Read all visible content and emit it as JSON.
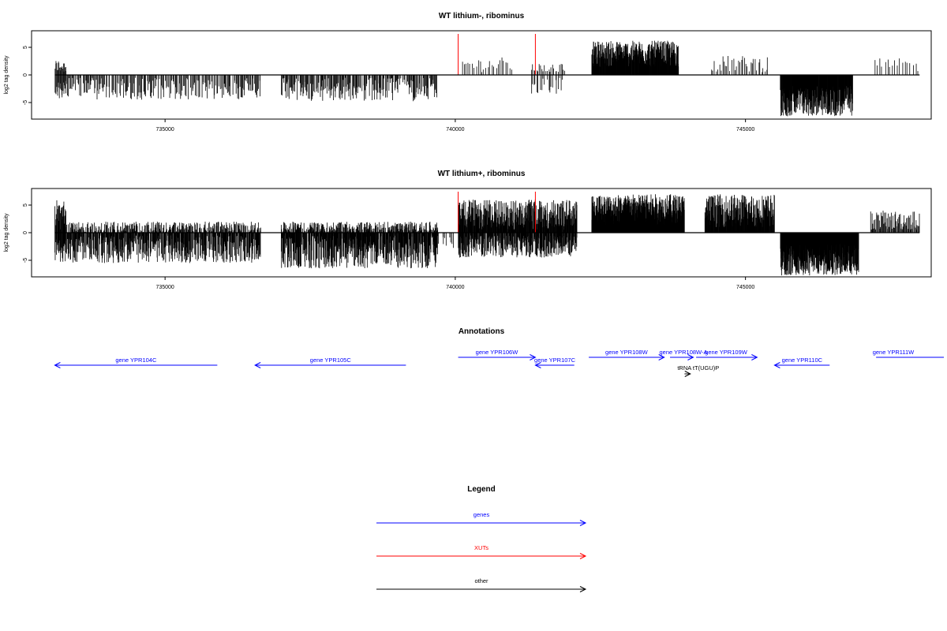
{
  "chart_data": [
    {
      "type": "bar",
      "title": "WT lithium-, ribominus",
      "ylabel": "log2 tag density",
      "xlim": [
        732700,
        748200
      ],
      "ylim": [
        -8,
        8
      ],
      "xticks": [
        735000,
        740000,
        745000
      ],
      "yticks": [
        -5,
        0,
        5
      ],
      "xut_markers": [
        740050,
        741380
      ],
      "grid": false,
      "segments": [
        {
          "start": 733100,
          "end": 733300,
          "density": 14,
          "pos": [
            0.4,
            2.8
          ],
          "neg": [
            -4.5,
            -1.0
          ]
        },
        {
          "start": 733300,
          "end": 736650,
          "density": 10,
          "pos": [
            0,
            0
          ],
          "neg": [
            -4.5,
            -0.5
          ]
        },
        {
          "start": 737000,
          "end": 739700,
          "density": 12,
          "pos": [
            0,
            0
          ],
          "neg": [
            -4.8,
            -0.5
          ]
        },
        {
          "start": 740100,
          "end": 741000,
          "density": 4,
          "pos": [
            0.5,
            3.2
          ],
          "neg": [
            0,
            0
          ]
        },
        {
          "start": 741300,
          "end": 741900,
          "density": 6,
          "pos": [
            0.5,
            2.0
          ],
          "neg": [
            -3.5,
            -0.5
          ]
        },
        {
          "start": 742350,
          "end": 743850,
          "density": 30,
          "pos": [
            1.5,
            6.2
          ],
          "neg": [
            0,
            0
          ]
        },
        {
          "start": 744400,
          "end": 745400,
          "density": 5,
          "pos": [
            0.5,
            3.5
          ],
          "neg": [
            0,
            0
          ]
        },
        {
          "start": 745600,
          "end": 746850,
          "density": 30,
          "pos": [
            0,
            0
          ],
          "neg": [
            -7.5,
            -2.0
          ]
        },
        {
          "start": 747200,
          "end": 748000,
          "density": 3,
          "pos": [
            0.5,
            3.0
          ],
          "neg": [
            0,
            0
          ]
        }
      ]
    },
    {
      "type": "bar",
      "title": "WT lithium+, ribominus",
      "ylabel": "log2 tag density",
      "xlim": [
        732700,
        748200
      ],
      "ylim": [
        -8,
        8
      ],
      "xticks": [
        735000,
        740000,
        745000
      ],
      "yticks": [
        -5,
        0,
        5
      ],
      "xut_markers": [
        740050,
        741380
      ],
      "grid": false,
      "segments": [
        {
          "start": 733100,
          "end": 733300,
          "density": 20,
          "pos": [
            0.5,
            6.0
          ],
          "neg": [
            -5.5,
            -1.0
          ]
        },
        {
          "start": 733300,
          "end": 736650,
          "density": 22,
          "pos": [
            0,
            2.0
          ],
          "neg": [
            -5.5,
            -0.5
          ]
        },
        {
          "start": 737000,
          "end": 739700,
          "density": 28,
          "pos": [
            0,
            2.0
          ],
          "neg": [
            -6.5,
            -0.5
          ]
        },
        {
          "start": 739700,
          "end": 740000,
          "density": 6,
          "pos": [
            0,
            0
          ],
          "neg": [
            -3.5,
            -0.5
          ]
        },
        {
          "start": 740050,
          "end": 742100,
          "density": 24,
          "pos": [
            0.5,
            6.0
          ],
          "neg": [
            -4.5,
            -0.5
          ]
        },
        {
          "start": 742350,
          "end": 743950,
          "density": 40,
          "pos": [
            1.5,
            7.0
          ],
          "neg": [
            0,
            0
          ]
        },
        {
          "start": 744300,
          "end": 745500,
          "density": 28,
          "pos": [
            1.0,
            7.0
          ],
          "neg": [
            0,
            0
          ]
        },
        {
          "start": 745600,
          "end": 746950,
          "density": 40,
          "pos": [
            0,
            0
          ],
          "neg": [
            -7.8,
            -2.0
          ]
        },
        {
          "start": 747150,
          "end": 748000,
          "density": 12,
          "pos": [
            0.5,
            4.0
          ],
          "neg": [
            0,
            0
          ]
        }
      ]
    }
  ],
  "annotations": {
    "title": "Annotations",
    "items": [
      {
        "label": "gene YPR104C",
        "type": "genes",
        "strand": "-",
        "start": 733100,
        "end": 735900,
        "row": 1
      },
      {
        "label": "gene YPR105C",
        "type": "genes",
        "strand": "-",
        "start": 736550,
        "end": 739150,
        "row": 1
      },
      {
        "label": "gene YPR106W",
        "type": "genes",
        "strand": "+",
        "start": 740050,
        "end": 741380,
        "row": 0
      },
      {
        "label": "gene YPR107C",
        "type": "genes",
        "strand": "-",
        "start": 741380,
        "end": 742050,
        "row": 1
      },
      {
        "label": "gene YPR108W",
        "type": "genes",
        "strand": "+",
        "start": 742300,
        "end": 743600,
        "row": 0
      },
      {
        "label": "gene YPR108W-A",
        "type": "genes",
        "strand": "+",
        "start": 743700,
        "end": 744100,
        "row": 0
      },
      {
        "label": "gene YPR109W",
        "type": "genes",
        "strand": "+",
        "start": 744150,
        "end": 745200,
        "row": 0
      },
      {
        "label": "tRNA tT(UGU)P",
        "type": "other",
        "strand": "+",
        "start": 743950,
        "end": 744050,
        "row": 2
      },
      {
        "label": "gene YPR110C",
        "type": "genes",
        "strand": "-",
        "start": 745500,
        "end": 746450,
        "row": 1
      },
      {
        "label": "gene YPR111W",
        "type": "genes",
        "strand": "+",
        "start": 747250,
        "end": 748800,
        "row": 0
      }
    ]
  },
  "legend": {
    "title": "Legend",
    "entries": [
      {
        "label": "genes",
        "color": "#0000ff"
      },
      {
        "label": "XUTs",
        "color": "#ff0000"
      },
      {
        "label": "other",
        "color": "#000000"
      }
    ]
  },
  "colors": {
    "genes": "#0000ff",
    "XUTs": "#ff0000",
    "other": "#000000"
  }
}
